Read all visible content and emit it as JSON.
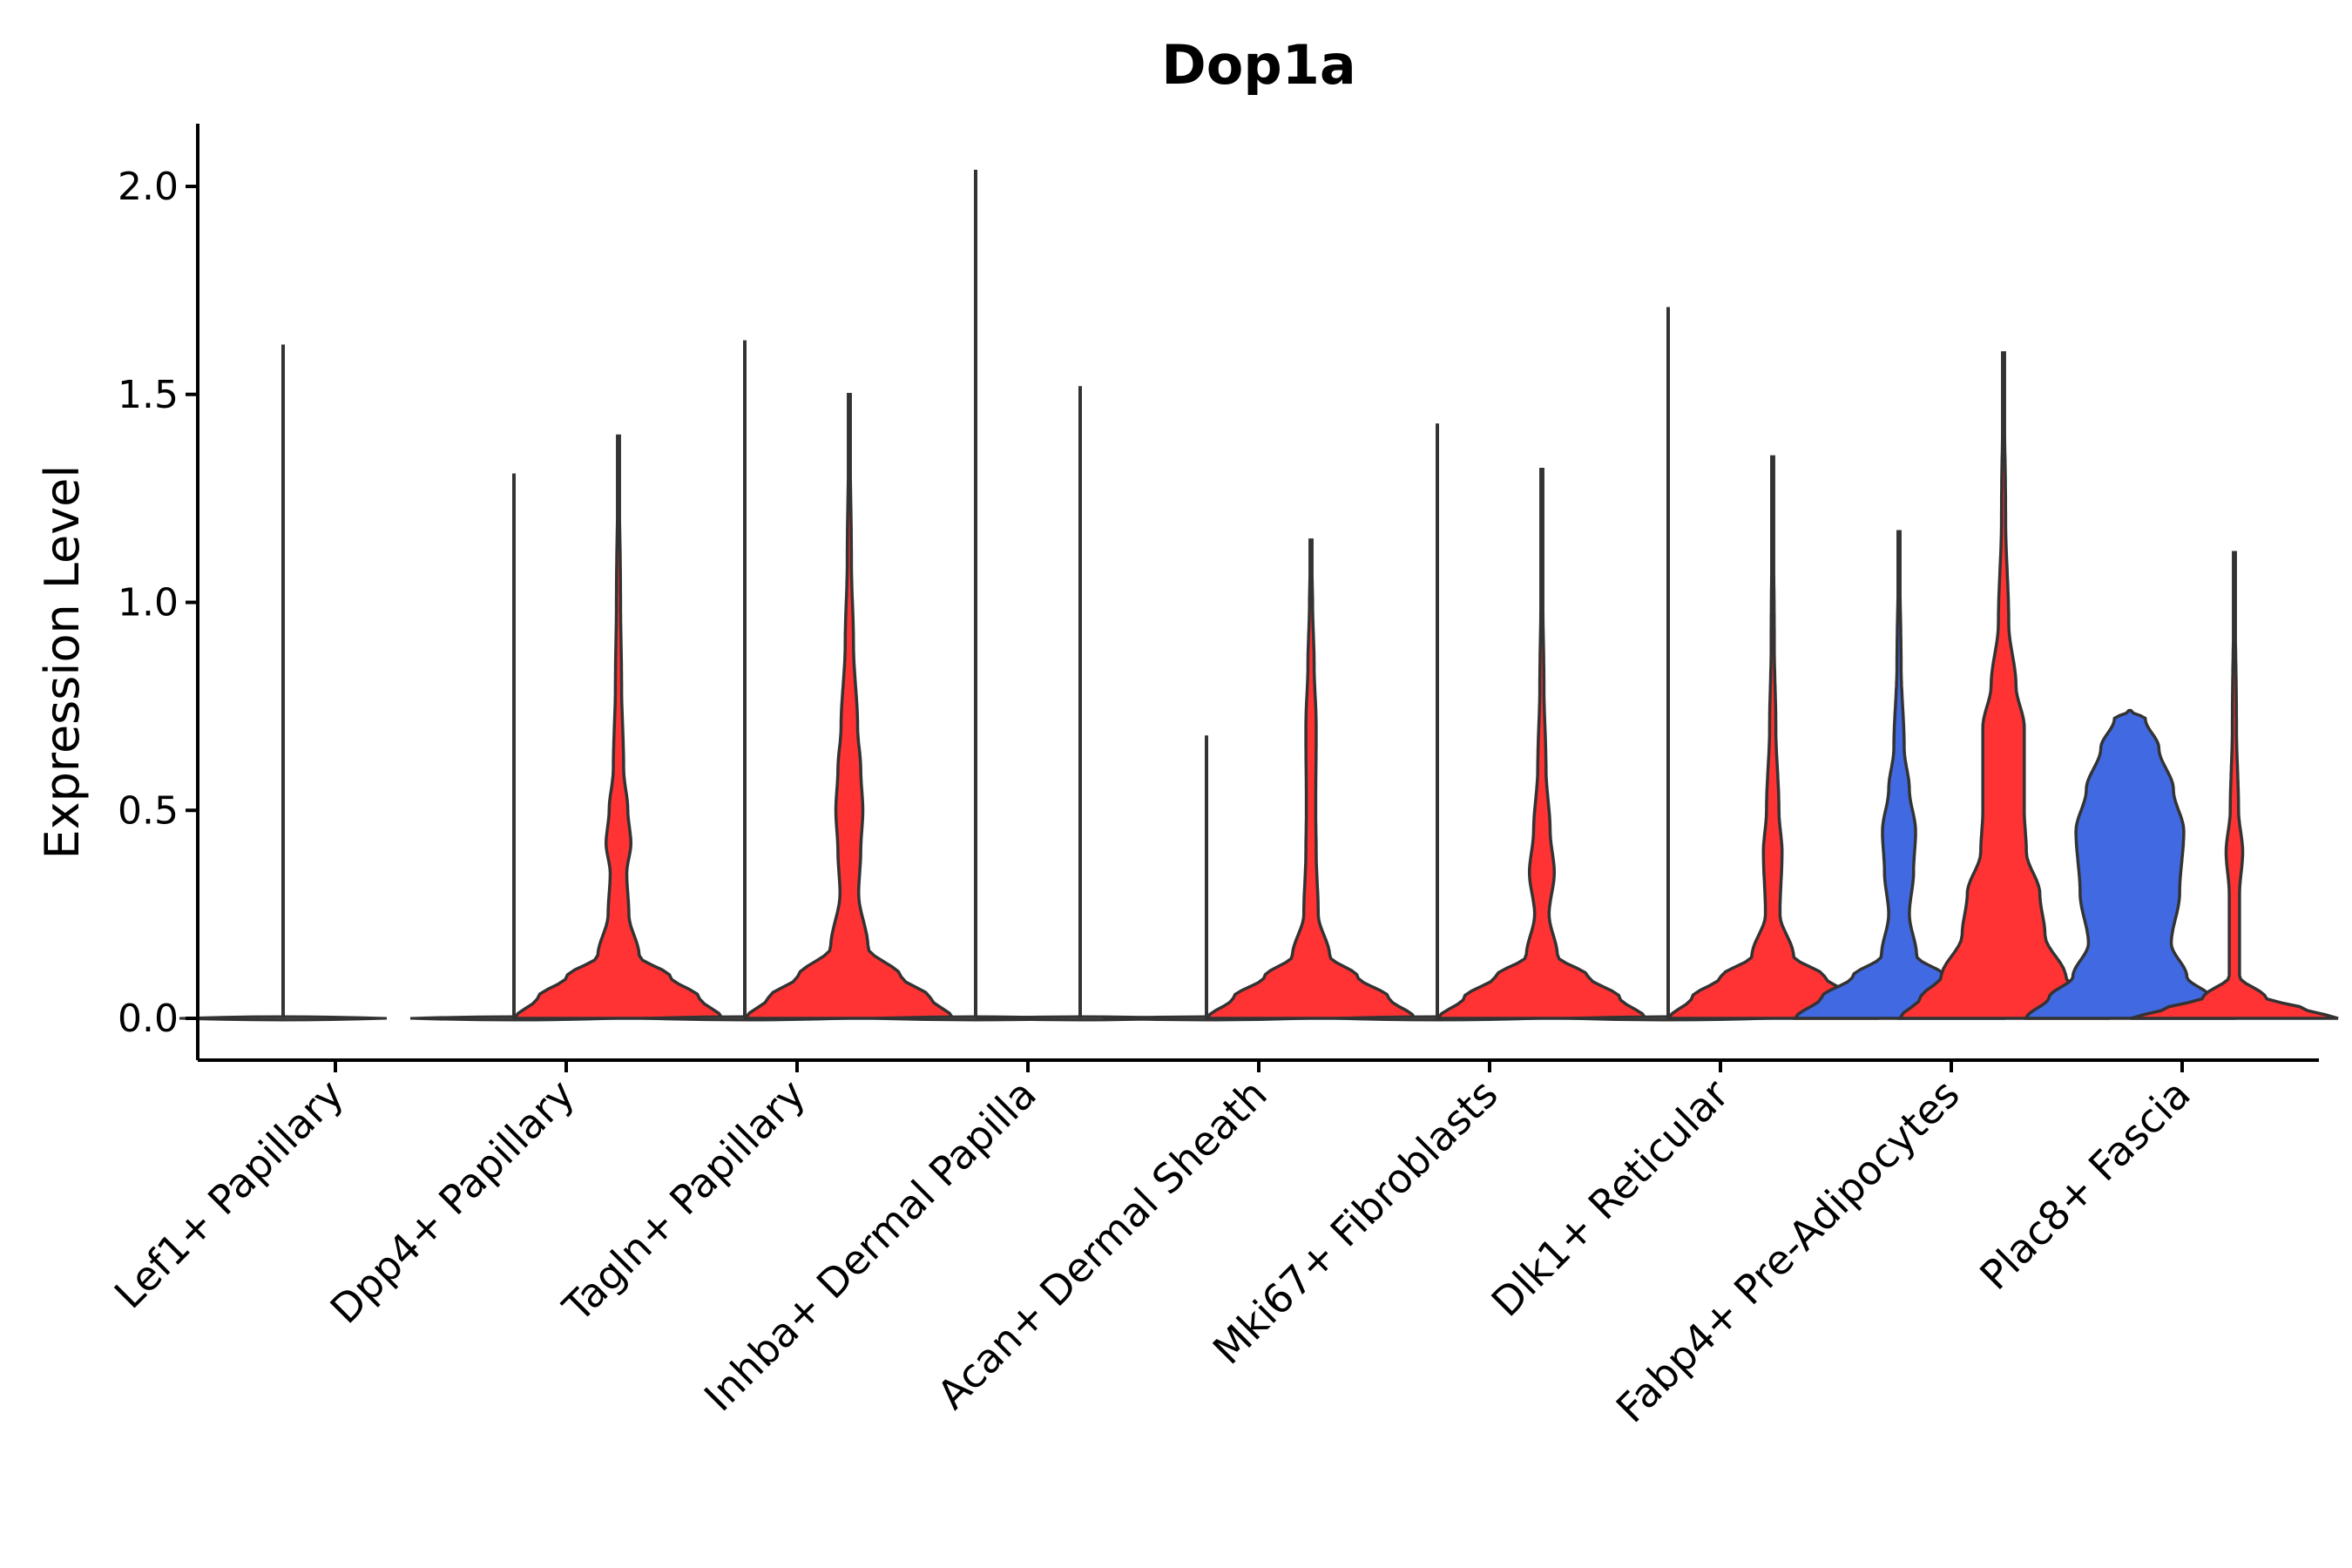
{
  "chart_data": {
    "type": "violin",
    "title": "Dop1a",
    "xlabel": "",
    "ylabel": "Expression Level",
    "ylim": [
      -0.1,
      2.15
    ],
    "yticks": [
      0.0,
      0.5,
      1.0,
      1.5,
      2.0
    ],
    "ytick_labels": [
      "0.0",
      "0.5",
      "1.0",
      "1.5",
      "2.0"
    ],
    "grid": false,
    "legend": "none",
    "colors": {
      "blue": "#4169E1",
      "red": "#FF3333",
      "flat": "#666666",
      "outline": "#333333"
    },
    "categories": [
      "Lef1+ Papillary",
      "Dpp4+ Papillary",
      "Tagln+ Papillary",
      "Inhba+ Dermal Papilla",
      "Acan+ Dermal Sheath",
      "Mki67+ Fibroblasts",
      "Dlk1+ Reticular",
      "Fabp4+ Pre-Adipocytes",
      "Plac8+ Fascia"
    ],
    "violins": [
      {
        "category": "Lef1+ Papillary",
        "side": "left",
        "color": "flat",
        "max": 1.62,
        "profile": [
          [
            0,
            1
          ],
          [
            0.02,
            0
          ]
        ]
      },
      {
        "category": "Dpp4+ Papillary",
        "side": "left",
        "color": "flat",
        "max": 1.31,
        "profile": [
          [
            0,
            1
          ],
          [
            0.02,
            0
          ]
        ]
      },
      {
        "category": "Dpp4+ Papillary",
        "side": "right",
        "color": "red",
        "max": 1.4,
        "profile": [
          [
            0,
            1.0
          ],
          [
            0.05,
            0.78
          ],
          [
            0.1,
            0.5
          ],
          [
            0.15,
            0.2
          ],
          [
            0.25,
            0.1
          ],
          [
            0.35,
            0.08
          ],
          [
            0.42,
            0.12
          ],
          [
            0.5,
            0.09
          ],
          [
            0.6,
            0.05
          ],
          [
            0.8,
            0.03
          ],
          [
            1.0,
            0.02
          ],
          [
            1.4,
            0
          ]
        ]
      },
      {
        "category": "Tagln+ Papillary",
        "side": "left",
        "color": "flat",
        "max": 1.63,
        "profile": [
          [
            0,
            1
          ],
          [
            0.02,
            0
          ]
        ]
      },
      {
        "category": "Tagln+ Papillary",
        "side": "right",
        "color": "red",
        "max": 1.5,
        "profile": [
          [
            0,
            1.0
          ],
          [
            0.05,
            0.78
          ],
          [
            0.1,
            0.5
          ],
          [
            0.17,
            0.18
          ],
          [
            0.3,
            0.09
          ],
          [
            0.4,
            0.11
          ],
          [
            0.5,
            0.13
          ],
          [
            0.6,
            0.11
          ],
          [
            0.7,
            0.08
          ],
          [
            0.9,
            0.04
          ],
          [
            1.1,
            0.02
          ],
          [
            1.5,
            0
          ]
        ]
      },
      {
        "category": "Inhba+ Dermal Papilla",
        "side": "left",
        "color": "flat",
        "max": 2.04,
        "profile": [
          [
            0,
            1
          ],
          [
            0.02,
            0
          ]
        ]
      },
      {
        "category": "Inhba+ Dermal Papilla",
        "side": "right",
        "color": "flat",
        "max": 1.52,
        "profile": [
          [
            0,
            1
          ],
          [
            0.02,
            0
          ]
        ]
      },
      {
        "category": "Acan+ Dermal Sheath",
        "side": "left",
        "color": "flat",
        "max": 0.68,
        "profile": [
          [
            0,
            1
          ],
          [
            0.02,
            0
          ]
        ]
      },
      {
        "category": "Acan+ Dermal Sheath",
        "side": "right",
        "color": "red",
        "max": 1.15,
        "profile": [
          [
            0,
            1.0
          ],
          [
            0.05,
            0.75
          ],
          [
            0.1,
            0.45
          ],
          [
            0.15,
            0.18
          ],
          [
            0.25,
            0.07
          ],
          [
            0.4,
            0.05
          ],
          [
            0.5,
            0.045
          ],
          [
            0.7,
            0.05
          ],
          [
            0.85,
            0.03
          ],
          [
            1.0,
            0.015
          ],
          [
            1.15,
            0
          ]
        ]
      },
      {
        "category": "Mki67+ Fibroblasts",
        "side": "left",
        "color": "flat",
        "max": 1.43,
        "profile": [
          [
            0,
            1
          ],
          [
            0.02,
            0
          ]
        ]
      },
      {
        "category": "Mki67+ Fibroblasts",
        "side": "right",
        "color": "red",
        "max": 1.32,
        "profile": [
          [
            0,
            1.0
          ],
          [
            0.05,
            0.75
          ],
          [
            0.1,
            0.45
          ],
          [
            0.15,
            0.15
          ],
          [
            0.25,
            0.07
          ],
          [
            0.35,
            0.12
          ],
          [
            0.45,
            0.08
          ],
          [
            0.6,
            0.04
          ],
          [
            0.8,
            0.02
          ],
          [
            1.0,
            0.01
          ],
          [
            1.32,
            0
          ]
        ]
      },
      {
        "category": "Dlk1+ Reticular",
        "side": "left",
        "color": "flat",
        "max": 1.71,
        "profile": [
          [
            0,
            1
          ],
          [
            0.02,
            0
          ]
        ]
      },
      {
        "category": "Dlk1+ Reticular",
        "side": "right",
        "color": "red",
        "max": 1.35,
        "profile": [
          [
            0,
            1.0
          ],
          [
            0.05,
            0.78
          ],
          [
            0.1,
            0.5
          ],
          [
            0.15,
            0.2
          ],
          [
            0.25,
            0.07
          ],
          [
            0.4,
            0.09
          ],
          [
            0.5,
            0.06
          ],
          [
            0.7,
            0.03
          ],
          [
            0.9,
            0.015
          ],
          [
            1.35,
            0
          ]
        ]
      },
      {
        "category": "Fabp4+ Pre-Adipocytes",
        "side": "left",
        "color": "blue",
        "max": 1.17,
        "profile": [
          [
            0,
            1.0
          ],
          [
            0.05,
            0.75
          ],
          [
            0.1,
            0.45
          ],
          [
            0.15,
            0.17
          ],
          [
            0.25,
            0.1
          ],
          [
            0.35,
            0.14
          ],
          [
            0.45,
            0.16
          ],
          [
            0.55,
            0.1
          ],
          [
            0.65,
            0.05
          ],
          [
            0.85,
            0.02
          ],
          [
            1.17,
            0
          ]
        ]
      },
      {
        "category": "Fabp4+ Pre-Adipocytes",
        "side": "right",
        "color": "red",
        "max": 1.6,
        "profile": [
          [
            0,
            1.0
          ],
          [
            0.05,
            0.8
          ],
          [
            0.1,
            0.6
          ],
          [
            0.2,
            0.4
          ],
          [
            0.3,
            0.35
          ],
          [
            0.4,
            0.22
          ],
          [
            0.5,
            0.2
          ],
          [
            0.6,
            0.2
          ],
          [
            0.7,
            0.2
          ],
          [
            0.8,
            0.12
          ],
          [
            0.95,
            0.05
          ],
          [
            1.2,
            0.02
          ],
          [
            1.6,
            0
          ]
        ]
      },
      {
        "category": "Plac8+ Fascia",
        "side": "left",
        "color": "blue",
        "max": 0.74,
        "profile": [
          [
            0,
            1.0
          ],
          [
            0.05,
            0.78
          ],
          [
            0.1,
            0.55
          ],
          [
            0.18,
            0.4
          ],
          [
            0.3,
            0.48
          ],
          [
            0.45,
            0.52
          ],
          [
            0.55,
            0.42
          ],
          [
            0.65,
            0.28
          ],
          [
            0.72,
            0.15
          ],
          [
            0.74,
            0
          ]
        ]
      },
      {
        "category": "Plac8+ Fascia",
        "side": "right",
        "color": "red",
        "max": 1.12,
        "profile": [
          [
            0,
            1.0
          ],
          [
            0.02,
            0.7
          ],
          [
            0.05,
            0.3
          ],
          [
            0.1,
            0.05
          ],
          [
            0.3,
            0.05
          ],
          [
            0.4,
            0.08
          ],
          [
            0.5,
            0.04
          ],
          [
            0.7,
            0.02
          ],
          [
            1.12,
            0
          ]
        ]
      }
    ]
  }
}
